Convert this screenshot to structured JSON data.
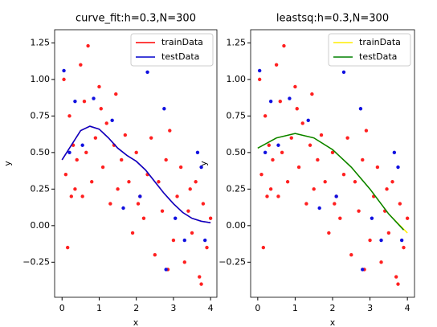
{
  "chart_data": [
    {
      "type": "scatter",
      "title": "curve_fit:h=0.3,N=300",
      "x_label": "x",
      "y_label": "y",
      "xlim": [
        -0.2,
        4.17
      ],
      "ylim": [
        -0.49,
        1.34
      ],
      "xticks": [
        0,
        1,
        2,
        3,
        4
      ],
      "yticks": [
        {
          "value": -0.25,
          "label": "−0.25"
        },
        {
          "value": 0,
          "label": "0.00"
        },
        {
          "value": 0.25,
          "label": "0.25"
        },
        {
          "value": 0.5,
          "label": "0.50"
        },
        {
          "value": 0.75,
          "label": "0.75"
        },
        {
          "value": 1,
          "label": "1.00"
        },
        {
          "value": 1.25,
          "label": "1.25"
        }
      ],
      "legend": "upper right",
      "series": [
        {
          "name": "trainData",
          "color": "#ff0000",
          "x": [
            0,
            0.25,
            0.5,
            0.75,
            1,
            1.25,
            1.5,
            1.75,
            2,
            2.25,
            2.5,
            2.75,
            3,
            3.25,
            3.5,
            3.75,
            4
          ],
          "values": [
            0.45,
            0.55,
            0.65,
            0.68,
            0.66,
            0.6,
            0.53,
            0.48,
            0.44,
            0.38,
            0.3,
            0.22,
            0.15,
            0.09,
            0.05,
            0.03,
            0.02
          ]
        },
        {
          "name": "testData",
          "color": "#0000cc",
          "x": [
            0,
            0.25,
            0.5,
            0.75,
            1,
            1.25,
            1.5,
            1.75,
            2,
            2.25,
            2.5,
            2.75,
            3,
            3.25,
            3.5,
            3.75,
            4
          ],
          "values": [
            0.45,
            0.55,
            0.65,
            0.68,
            0.66,
            0.6,
            0.53,
            0.48,
            0.44,
            0.38,
            0.3,
            0.22,
            0.15,
            0.09,
            0.05,
            0.03,
            0.02
          ]
        }
      ],
      "points": [
        {
          "color": "#ff2020",
          "x": [
            0.05,
            0.1,
            0.15,
            0.2,
            0.3,
            0.35,
            0.4,
            0.5,
            0.55,
            0.6,
            0.7,
            0.8,
            0.9,
            1.0,
            1.1,
            1.2,
            1.3,
            1.4,
            1.5,
            1.6,
            1.7,
            1.8,
            1.9,
            2.0,
            2.1,
            2.2,
            2.3,
            2.4,
            2.5,
            2.6,
            2.7,
            2.8,
            2.9,
            3.0,
            3.1,
            3.2,
            3.3,
            3.4,
            3.5,
            3.6,
            3.7,
            3.8,
            3.9,
            4.0,
            0.25,
            0.65,
            1.05,
            1.45,
            2.05,
            2.85,
            3.45,
            3.75
          ],
          "values": [
            1.0,
            0.35,
            -0.15,
            0.75,
            0.55,
            0.25,
            0.45,
            1.1,
            0.2,
            0.85,
            1.23,
            0.3,
            0.6,
            0.95,
            0.4,
            0.7,
            0.15,
            0.55,
            0.25,
            0.45,
            0.62,
            0.3,
            -0.05,
            0.5,
            0.2,
            0.05,
            0.35,
            0.6,
            -0.2,
            0.3,
            0.1,
            0.45,
            0.65,
            -0.1,
            0.2,
            0.4,
            -0.25,
            0.1,
            -0.05,
            0.3,
            -0.35,
            0.15,
            -0.15,
            0.05,
            0.2,
            0.5,
            0.8,
            0.9,
            0.15,
            -0.3,
            0.25,
            -0.4
          ]
        },
        {
          "color": "#1010e0",
          "x": [
            0.05,
            0.2,
            0.35,
            0.55,
            0.85,
            1.35,
            1.65,
            2.1,
            2.3,
            2.75,
            2.8,
            3.05,
            3.3,
            3.65,
            3.75,
            3.85
          ],
          "values": [
            1.06,
            0.5,
            0.85,
            0.55,
            0.87,
            0.72,
            0.12,
            0.2,
            1.05,
            0.8,
            -0.3,
            0.05,
            -0.1,
            0.5,
            0.4,
            -0.1
          ]
        }
      ]
    },
    {
      "type": "scatter",
      "title": "leastsq:h=0.3,N=300",
      "x_label": "x",
      "y_label": "y",
      "xlim": [
        -0.19,
        4.19
      ],
      "ylim": [
        -0.49,
        1.34
      ],
      "xticks": [
        0,
        1,
        2,
        3,
        4
      ],
      "yticks": [
        {
          "value": -0.25,
          "label": "−0.25"
        },
        {
          "value": 0,
          "label": "0.00"
        },
        {
          "value": 0.25,
          "label": "0.25"
        },
        {
          "value": 0.5,
          "label": "0.50"
        },
        {
          "value": 0.75,
          "label": "0.75"
        },
        {
          "value": 1,
          "label": "1.00"
        },
        {
          "value": 1.25,
          "label": "1.25"
        }
      ],
      "legend": "upper right",
      "series": [
        {
          "name": "trainData",
          "color": "#ffee00",
          "x": [
            0,
            0.5,
            1,
            1.5,
            2,
            2.5,
            3,
            3.5,
            4
          ],
          "values": [
            0.53,
            0.6,
            0.63,
            0.6,
            0.52,
            0.4,
            0.25,
            0.08,
            -0.05
          ]
        },
        {
          "name": "testData",
          "color": "#008000",
          "x": [
            0,
            0.5,
            1,
            1.5,
            2,
            2.5,
            3,
            3.5,
            3.9
          ],
          "values": [
            0.53,
            0.6,
            0.63,
            0.6,
            0.52,
            0.4,
            0.25,
            0.08,
            -0.03
          ]
        }
      ],
      "points": [
        {
          "color": "#ff2020",
          "x": [
            0.05,
            0.1,
            0.15,
            0.2,
            0.3,
            0.35,
            0.4,
            0.5,
            0.55,
            0.6,
            0.7,
            0.8,
            0.9,
            1.0,
            1.1,
            1.2,
            1.3,
            1.4,
            1.5,
            1.6,
            1.7,
            1.8,
            1.9,
            2.0,
            2.1,
            2.2,
            2.3,
            2.4,
            2.5,
            2.6,
            2.7,
            2.8,
            2.9,
            3.0,
            3.1,
            3.2,
            3.3,
            3.4,
            3.5,
            3.6,
            3.7,
            3.8,
            3.9,
            4.0,
            0.25,
            0.65,
            1.05,
            1.45,
            2.05,
            2.85,
            3.45,
            3.75
          ],
          "values": [
            1.0,
            0.35,
            -0.15,
            0.75,
            0.55,
            0.25,
            0.45,
            1.1,
            0.2,
            0.85,
            1.23,
            0.3,
            0.6,
            0.95,
            0.4,
            0.7,
            0.15,
            0.55,
            0.25,
            0.45,
            0.62,
            0.3,
            -0.05,
            0.5,
            0.2,
            0.05,
            0.35,
            0.6,
            -0.2,
            0.3,
            0.1,
            0.45,
            0.65,
            -0.1,
            0.2,
            0.4,
            -0.25,
            0.1,
            -0.05,
            0.3,
            -0.35,
            0.15,
            -0.15,
            0.05,
            0.2,
            0.5,
            0.8,
            0.9,
            0.15,
            -0.3,
            0.25,
            -0.4
          ]
        },
        {
          "color": "#1010e0",
          "x": [
            0.05,
            0.2,
            0.35,
            0.55,
            0.85,
            1.35,
            1.65,
            2.1,
            2.3,
            2.75,
            2.8,
            3.05,
            3.3,
            3.65,
            3.75,
            3.85
          ],
          "values": [
            1.06,
            0.5,
            0.85,
            0.55,
            0.87,
            0.72,
            0.12,
            0.2,
            1.05,
            0.8,
            -0.3,
            0.05,
            -0.1,
            0.5,
            0.4,
            -0.1
          ]
        }
      ]
    }
  ]
}
